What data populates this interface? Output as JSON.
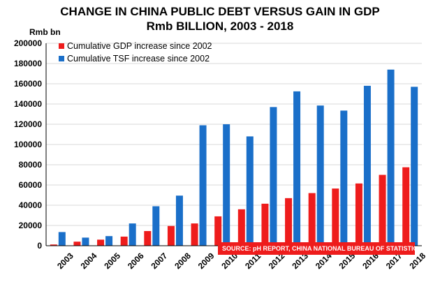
{
  "chart_data": {
    "type": "bar",
    "title": "CHANGE IN CHINA PUBLIC DEBT VERSUS GAIN IN GDP",
    "subtitle": "Rmb BILLION, 2003 - 2018",
    "ylabel": "Rmb bn",
    "xlabel": "",
    "ylim": [
      0,
      200000
    ],
    "yticks": [
      "0",
      "20000",
      "40000",
      "60000",
      "80000",
      "100000",
      "120000",
      "140000",
      "160000",
      "180000",
      "200000"
    ],
    "categories": [
      "2003",
      "2004",
      "2005",
      "2006",
      "2007",
      "2008",
      "2009",
      "2010",
      "2011",
      "2012",
      "2013",
      "2014",
      "2015",
      "2016",
      "2017",
      "2018"
    ],
    "series": [
      {
        "name": "Cumulative GDP increase since 2002",
        "color": "#ee1c1c",
        "values": [
          1200,
          4000,
          6000,
          9000,
          14500,
          19500,
          22000,
          29000,
          36000,
          41500,
          47000,
          52000,
          56500,
          61500,
          70000,
          77500
        ]
      },
      {
        "name": "Cumulative TSF increase since 2002",
        "color": "#1a6fc9",
        "values": [
          13500,
          8000,
          9500,
          22000,
          39000,
          49500,
          119000,
          120000,
          108000,
          137000,
          152500,
          138500,
          133500,
          158000,
          174000,
          157000
        ]
      }
    ],
    "legend_position": "top-left",
    "grid": true,
    "annotation": "SOURCE: pH REPORT, CHINA NATIONAL BUREAU OF STATISTICS",
    "annotation_color": "#ee1c1c"
  }
}
